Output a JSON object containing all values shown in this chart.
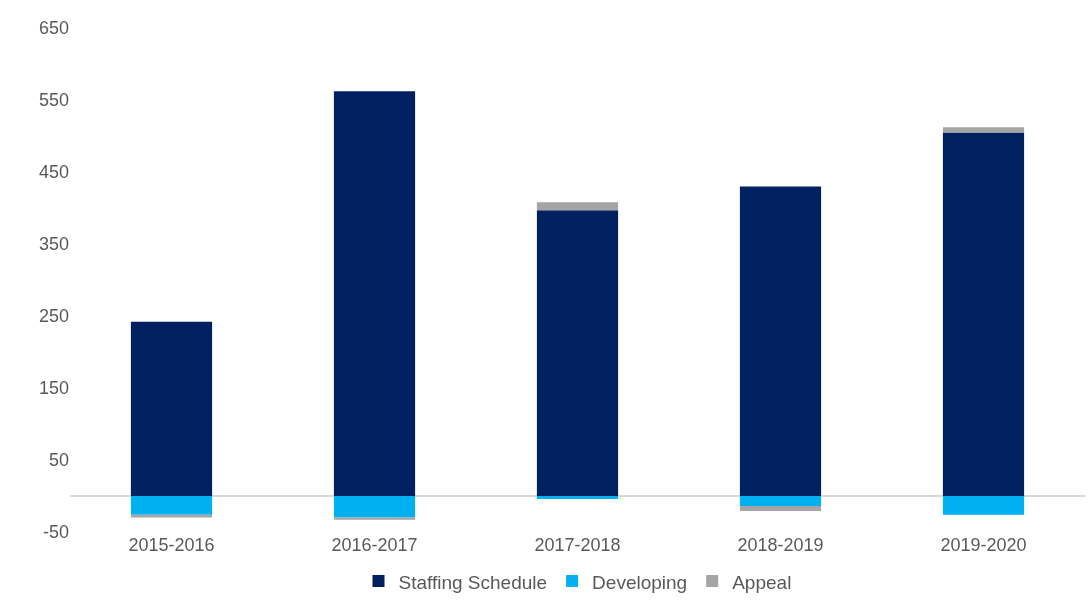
{
  "chart_data": {
    "type": "bar",
    "stacked": true,
    "categories": [
      "2015-2016",
      "2016-2017",
      "2017-2018",
      "2018-2019",
      "2019-2020"
    ],
    "series": [
      {
        "name": "Staffing Schedule",
        "color": "#002060",
        "values": [
          242,
          562,
          397,
          430,
          505
        ]
      },
      {
        "name": "Developing",
        "color": "#00b0f0",
        "values": [
          -26,
          -30,
          -4,
          -14,
          -26
        ]
      },
      {
        "name": "Appeal",
        "color": "#a5a5a5",
        "values": [
          -4,
          -3,
          11,
          -7,
          7
        ]
      }
    ],
    "ylim": [
      -50,
      650
    ],
    "yticks": [
      -50,
      50,
      150,
      250,
      350,
      450,
      550,
      650
    ],
    "grid": false,
    "legend": "bottom"
  }
}
